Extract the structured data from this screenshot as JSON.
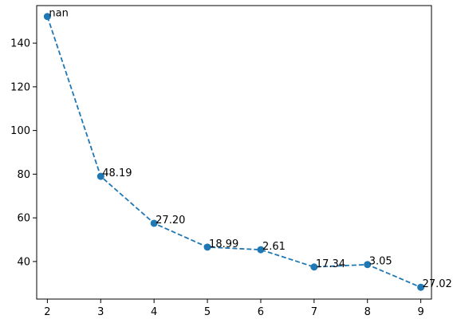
{
  "chart_data": {
    "type": "line",
    "title": "",
    "xlabel": "",
    "ylabel": "",
    "xlim": [
      1.8,
      9.2
    ],
    "ylim": [
      22.8,
      157.2
    ],
    "x_ticks": [
      2,
      3,
      4,
      5,
      6,
      7,
      8,
      9
    ],
    "y_ticks": [
      40,
      60,
      80,
      100,
      120,
      140
    ],
    "grid": false,
    "legend": "none",
    "series": [
      {
        "color": "#1f77b4",
        "line_style": "dashed",
        "marker": "circle",
        "x": [
          2,
          3,
          4,
          5,
          6,
          7,
          8,
          9
        ],
        "y": [
          152.2,
          79.0,
          57.5,
          46.6,
          45.4,
          37.5,
          38.6,
          28.2
        ],
        "labels": [
          "nan",
          "48.19",
          "27.20",
          "18.99",
          "2.61",
          "17.34",
          "3.05",
          "27.02"
        ]
      }
    ]
  }
}
